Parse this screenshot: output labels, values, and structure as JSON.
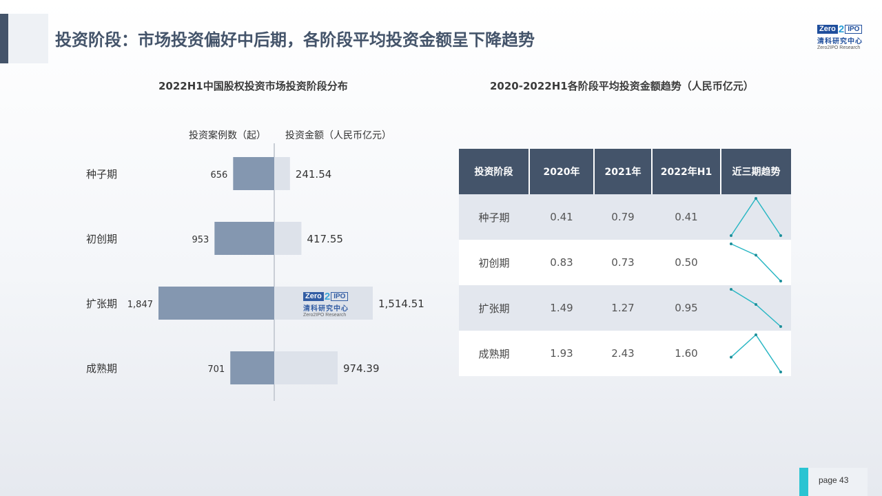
{
  "page_title": "投资阶段：市场投资偏好中后期，各阶段平均投资金额呈下降趋势",
  "logo": {
    "zero": "Zero",
    "two": "2",
    "ipo": "IPO",
    "cn": "清科研究中心",
    "en": "Zero2IPO Research"
  },
  "page_label": "page 43",
  "chart_data": [
    {
      "type": "bar",
      "title": "2022H1中国股权投资市场投资阶段分布",
      "categories": [
        "种子期",
        "初创期",
        "扩张期",
        "成熟期"
      ],
      "series": [
        {
          "name": "投资案例数（起）",
          "values": [
            656,
            953,
            1847,
            701
          ],
          "labels": [
            "656",
            "953",
            "1,847",
            "701"
          ],
          "color": "#8497b0"
        },
        {
          "name": "投资金额（人民币亿元）",
          "values": [
            241.54,
            417.55,
            1514.51,
            974.39
          ],
          "labels": [
            "241.54",
            "417.55",
            "1,514.51",
            "974.39"
          ],
          "color": "#dde2ea"
        }
      ]
    },
    {
      "type": "table",
      "title": "2020-2022H1各阶段平均投资金额趋势（人民币亿元）",
      "columns": [
        "投资阶段",
        "2020年",
        "2021年",
        "2022年H1",
        "近三期趋势"
      ],
      "rows": [
        {
          "stage": "种子期",
          "v2020": "0.41",
          "v2021": "0.79",
          "v2022": "0.41",
          "trend": [
            0.41,
            0.79,
            0.41
          ]
        },
        {
          "stage": "初创期",
          "v2020": "0.83",
          "v2021": "0.73",
          "v2022": "0.50",
          "trend": [
            0.83,
            0.73,
            0.5
          ]
        },
        {
          "stage": "扩张期",
          "v2020": "1.49",
          "v2021": "1.27",
          "v2022": "0.95",
          "trend": [
            1.49,
            1.27,
            0.95
          ]
        },
        {
          "stage": "成熟期",
          "v2020": "1.93",
          "v2021": "2.43",
          "v2022": "1.60",
          "trend": [
            1.93,
            2.43,
            1.6
          ]
        }
      ],
      "sparkline_color": "#2ab7c4"
    }
  ]
}
